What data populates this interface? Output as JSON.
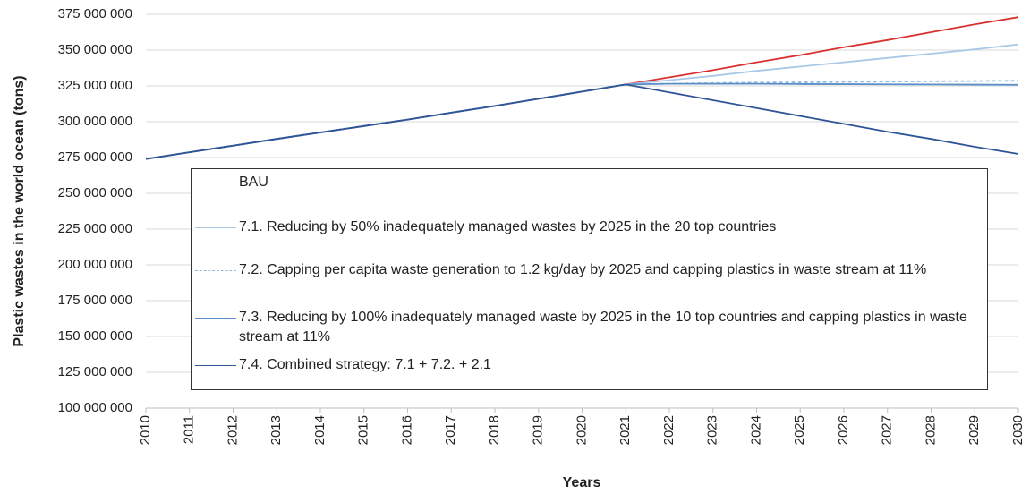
{
  "chart_data": {
    "type": "line",
    "xlabel": "Years",
    "ylabel": "Plastic wastes in the world ocean (tons)",
    "x": [
      2010,
      2011,
      2012,
      2013,
      2014,
      2015,
      2016,
      2017,
      2018,
      2019,
      2020,
      2021,
      2022,
      2023,
      2024,
      2025,
      2026,
      2027,
      2028,
      2029,
      2030
    ],
    "xlim": [
      2010,
      2030
    ],
    "xticks": [
      2010,
      2011,
      2012,
      2013,
      2014,
      2015,
      2016,
      2017,
      2018,
      2019,
      2020,
      2021,
      2022,
      2023,
      2024,
      2025,
      2026,
      2027,
      2028,
      2029,
      2030
    ],
    "ylim": [
      100000000,
      375000000
    ],
    "yticks": [
      {
        "value": 100000000,
        "label": "100 000 000"
      },
      {
        "value": 125000000,
        "label": "125 000 000"
      },
      {
        "value": 150000000,
        "label": "150 000 000"
      },
      {
        "value": 175000000,
        "label": "175 000 000"
      },
      {
        "value": 200000000,
        "label": "200 000 000"
      },
      {
        "value": 225000000,
        "label": "225 000 000"
      },
      {
        "value": 250000000,
        "label": "250 000 000"
      },
      {
        "value": 275000000,
        "label": "275 000 000"
      },
      {
        "value": 300000000,
        "label": "300 000 000"
      },
      {
        "value": 325000000,
        "label": "325 000 000"
      },
      {
        "value": 350000000,
        "label": "350 000 000"
      },
      {
        "value": 375000000,
        "label": "375 000 000"
      }
    ],
    "grid": true,
    "series": [
      {
        "name": "BAU",
        "color": "#d9312f",
        "dashed": false,
        "values": [
          274000000,
          278700000,
          283300000,
          288000000,
          292500000,
          297000000,
          301500000,
          306300000,
          311000000,
          316000000,
          321000000,
          326000000,
          331000000,
          336000000,
          341500000,
          346500000,
          352000000,
          357000000,
          362500000,
          368000000,
          373000000
        ]
      },
      {
        "name": "7.1. Reducing by 50% inadequately managed wastes  by 2025 in the 20 top countries",
        "color": "#a8c8e8",
        "dashed": false,
        "values": [
          274000000,
          278700000,
          283300000,
          288000000,
          292500000,
          297000000,
          301500000,
          306300000,
          311000000,
          316000000,
          321000000,
          326000000,
          329000000,
          332000000,
          335500000,
          338500000,
          341500000,
          344500000,
          347500000,
          350500000,
          354000000
        ]
      },
      {
        "name": "7.2. Capping per capita waste generation to 1.2 kg/day by 2025 and  capping plastics in  waste stream at 11%",
        "color": "#8fb9e0",
        "dashed": true,
        "values": [
          274000000,
          278700000,
          283300000,
          288000000,
          292500000,
          297000000,
          301500000,
          306300000,
          311000000,
          316000000,
          321000000,
          326000000,
          326500000,
          327000000,
          327300000,
          327500000,
          327800000,
          328000000,
          328200000,
          328400000,
          328600000
        ]
      },
      {
        "name": "7.3. Reducing by 100% inadequately managed waste by 2025 in the 10 top countries and  capping plastics in  waste stream at 11%",
        "color": "#5b8fc7",
        "dashed": false,
        "values": [
          274000000,
          278700000,
          283300000,
          288000000,
          292500000,
          297000000,
          301500000,
          306300000,
          311000000,
          316000000,
          321000000,
          326000000,
          326500000,
          326500000,
          326500000,
          326300000,
          326200000,
          326100000,
          326000000,
          325900000,
          325800000
        ]
      },
      {
        "name": "7.4. Combined strategy: 7.1 + 7.2. + 2.1",
        "color": "#2f5597",
        "dashed": false,
        "values": [
          274000000,
          278700000,
          283300000,
          288000000,
          292500000,
          297000000,
          301500000,
          306300000,
          311000000,
          316000000,
          321000000,
          326000000,
          320500000,
          315000000,
          309500000,
          304000000,
          298500000,
          293000000,
          288000000,
          282500000,
          277500000
        ]
      }
    ]
  }
}
